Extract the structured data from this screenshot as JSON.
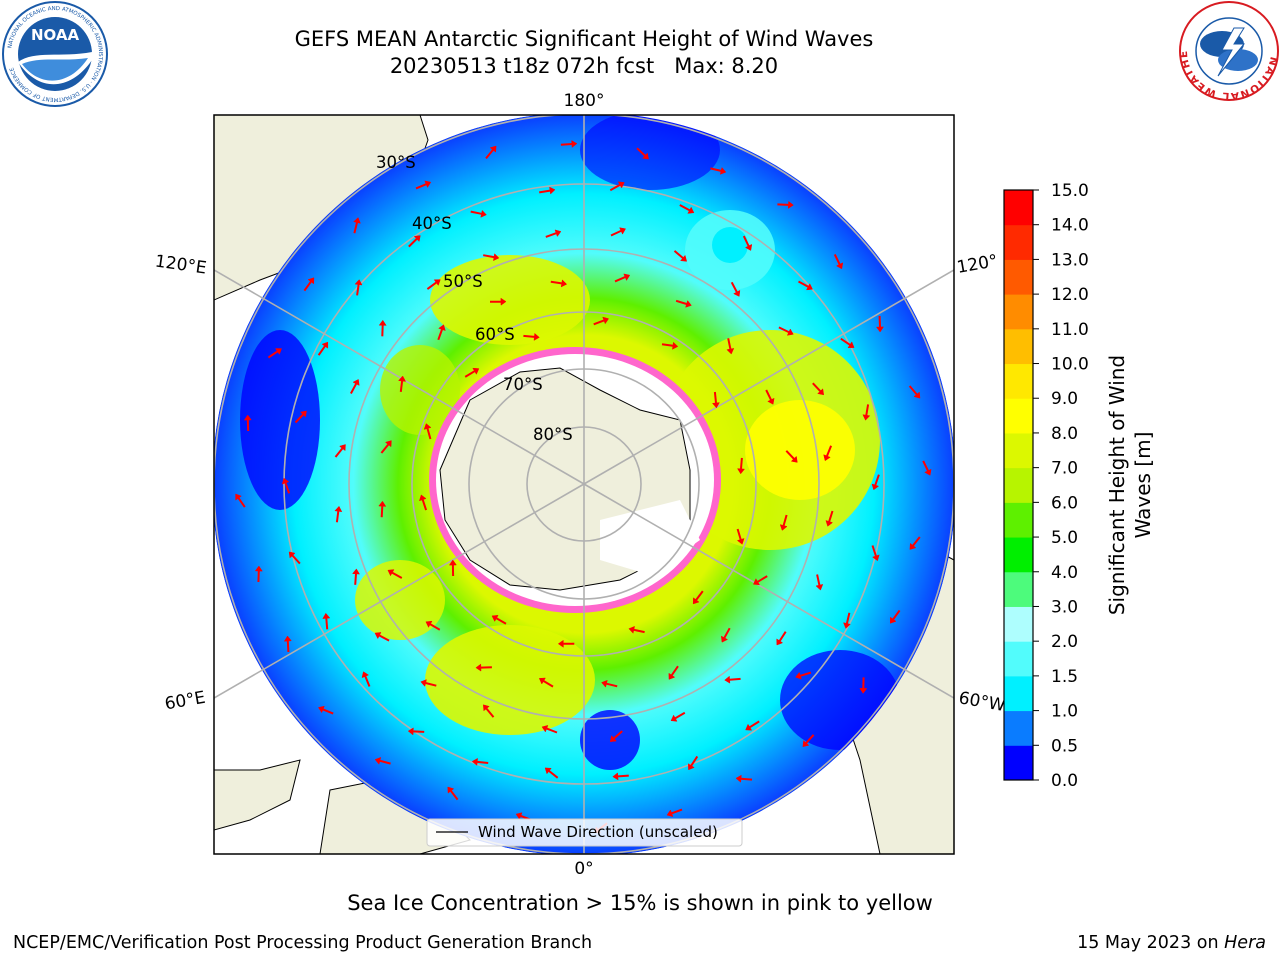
{
  "title_line1": "GEFS MEAN Antarctic Significant Height of Wind Waves",
  "title_line2": "20230513 t18z 072h fcst   Max: 8.20",
  "logos": {
    "left": {
      "name": "noaa-logo",
      "text": "NOAA",
      "ring_text": "NATIONAL OCEANIC AND ATMOSPHERIC ADMINISTRATION · U.S. DEPARTMENT OF COMMERCE",
      "color": "#1a5aa8"
    },
    "right": {
      "name": "nws-logo",
      "ring_text": "NATIONAL WEATHER SERVICE",
      "color": "#d81b21"
    }
  },
  "map": {
    "lon_labels": [
      "180°",
      "120°E",
      "120°",
      "60°E",
      "60°W",
      "0°"
    ],
    "lat_labels": [
      "30°S",
      "40°S",
      "50°S",
      "60°S",
      "70°S",
      "80°S"
    ],
    "legend_text": "Wind Wave Direction (unscaled)",
    "colors": {
      "land": "#efefdc",
      "ice": "#ffffff",
      "arrow": "#ff0000",
      "grid": "#b0b0b0"
    }
  },
  "colorbar": {
    "label": "Significant Height of Wind Waves [m]",
    "ticks": [
      "0.0",
      "0.5",
      "1.0",
      "1.5",
      "2.0",
      "3.0",
      "4.0",
      "5.0",
      "6.0",
      "7.0",
      "8.0",
      "9.0",
      "10.0",
      "11.0",
      "12.0",
      "13.0",
      "14.0",
      "15.0"
    ],
    "colors": [
      "#0000ff",
      "#0a7cff",
      "#00f0ff",
      "#52fcfc",
      "#aefefe",
      "#4dfb7c",
      "#00ef00",
      "#5ef000",
      "#b7f400",
      "#dcf800",
      "#ffff00",
      "#ffe800",
      "#ffbe00",
      "#ff8c00",
      "#ff5a00",
      "#ff2a00",
      "#ff0000"
    ]
  },
  "footnote": "Sea Ice Concentration > 15% is shown in pink to yellow",
  "credit_left": "NCEP/EMC/Verification Post Processing Product Generation Branch",
  "credit_right_prefix": "15 May 2023 on ",
  "credit_right_host": "Hera"
}
